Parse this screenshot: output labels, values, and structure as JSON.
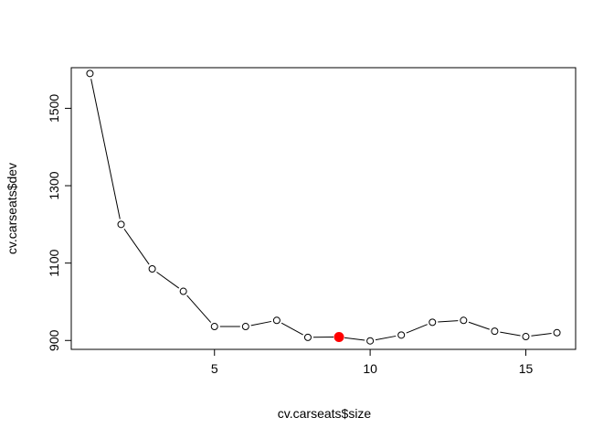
{
  "chart_data": {
    "type": "line",
    "title": "",
    "xlabel": "cv.carseats$size",
    "ylabel": "cv.carseats$dev",
    "xlim": [
      0.4,
      16.6
    ],
    "ylim": [
      877,
      1605
    ],
    "xticks": [
      5,
      10,
      15
    ],
    "yticks": [
      900,
      1100,
      1300,
      1500
    ],
    "xtick_labels": [
      "5",
      "10",
      "15"
    ],
    "ytick_labels": [
      "900",
      "1100",
      "1300",
      "1500"
    ],
    "grid": false,
    "series": [
      {
        "x": [
          1,
          2,
          3,
          4,
          5,
          6,
          7,
          8,
          9,
          10,
          11,
          12,
          13,
          14,
          15,
          16
        ],
        "y": [
          1590,
          1200,
          1085,
          1027,
          936,
          936,
          952,
          908,
          909,
          899,
          914,
          947,
          952,
          924,
          910,
          920
        ],
        "marker": "open-circle",
        "line_color": "#000000"
      }
    ],
    "highlight": {
      "x": 9,
      "y": 909,
      "color": "#ff0000",
      "marker": "filled-circle"
    }
  }
}
